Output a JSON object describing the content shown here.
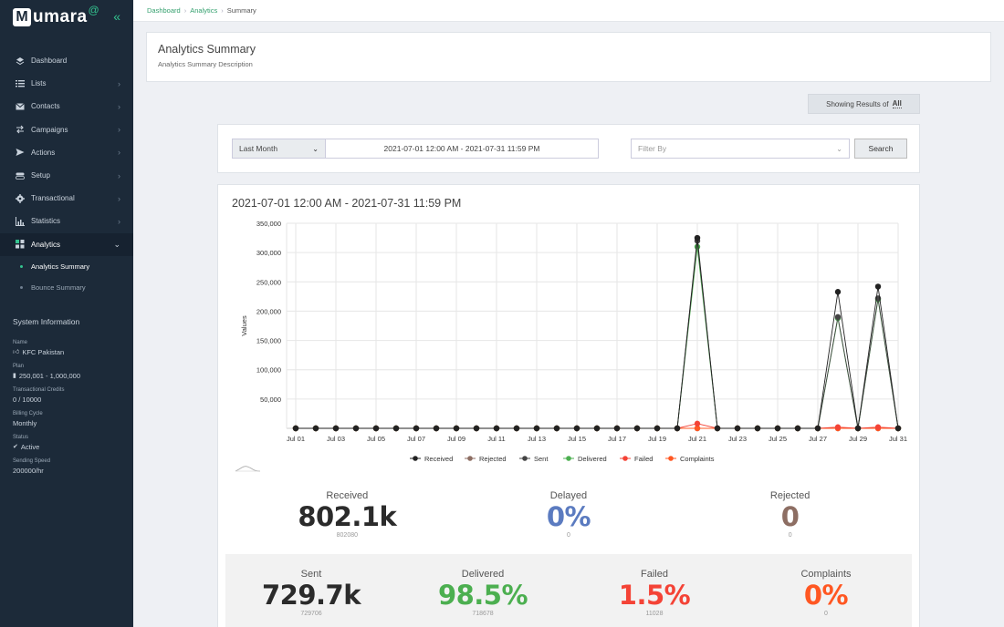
{
  "brand": {
    "letter": "M",
    "name": "umara",
    "suffix": "@"
  },
  "nav": [
    {
      "label": "Dashboard",
      "icon": "layers-icon",
      "has_arrow": false
    },
    {
      "label": "Lists",
      "icon": "list-icon",
      "has_arrow": true
    },
    {
      "label": "Contacts",
      "icon": "envelope-icon",
      "has_arrow": true
    },
    {
      "label": "Campaigns",
      "icon": "swap-icon",
      "has_arrow": true
    },
    {
      "label": "Actions",
      "icon": "send-icon",
      "has_arrow": true
    },
    {
      "label": "Setup",
      "icon": "toggle-icon",
      "has_arrow": true
    },
    {
      "label": "Transactional",
      "icon": "gear-icon",
      "has_arrow": true
    },
    {
      "label": "Statistics",
      "icon": "bar-chart-icon",
      "has_arrow": true
    },
    {
      "label": "Analytics",
      "icon": "grid-icon",
      "has_arrow": true
    }
  ],
  "subnav": [
    {
      "label": "Analytics Summary"
    },
    {
      "label": "Bounce Summary"
    }
  ],
  "system": {
    "title": "System Information",
    "name_label": "Name",
    "name_value": "KFC Pakistan",
    "plan_label": "Plan",
    "plan_value": "250,001 - 1,000,000",
    "credits_label": "Transactional Credits",
    "credits_value": "0 / 10000",
    "billing_label": "Billing Cycle",
    "billing_value": "Monthly",
    "status_label": "Status",
    "status_value": "Active",
    "speed_label": "Sending Speed",
    "speed_value": "200000/hr"
  },
  "breadcrumb": {
    "dashboard": "Dashboard",
    "analytics": "Analytics",
    "current": "Summary"
  },
  "header": {
    "title": "Analytics Summary",
    "description": "Analytics Summary Description"
  },
  "results": {
    "prefix": "Showing Results of",
    "value": "All"
  },
  "filter": {
    "range": "Last Month",
    "date_range": "2021-07-01 12:00 AM - 2021-07-31 11:59 PM",
    "filter_placeholder": "Filter By",
    "search_label": "Search"
  },
  "chart_title": "2021-07-01 12:00 AM - 2021-07-31 11:59 PM",
  "chart_data": {
    "type": "line",
    "ylabel": "Values",
    "ylim": [
      0,
      350000
    ],
    "yticks": [
      50000,
      100000,
      150000,
      200000,
      250000,
      300000,
      350000
    ],
    "ytick_labels": [
      "50,000",
      "100,000",
      "150,000",
      "200,000",
      "250,000",
      "300,000",
      "350,000"
    ],
    "x": [
      "Jul 01",
      "Jul 02",
      "Jul 03",
      "Jul 04",
      "Jul 05",
      "Jul 06",
      "Jul 07",
      "Jul 08",
      "Jul 09",
      "Jul 10",
      "Jul 11",
      "Jul 12",
      "Jul 13",
      "Jul 14",
      "Jul 15",
      "Jul 16",
      "Jul 17",
      "Jul 18",
      "Jul 19",
      "Jul 20",
      "Jul 21",
      "Jul 22",
      "Jul 23",
      "Jul 24",
      "Jul 25",
      "Jul 26",
      "Jul 27",
      "Jul 28",
      "Jul 29",
      "Jul 30",
      "Jul 31"
    ],
    "xtick_labels": [
      "Jul 01",
      "Jul 03",
      "Jul 05",
      "Jul 07",
      "Jul 09",
      "Jul 11",
      "Jul 13",
      "Jul 15",
      "Jul 17",
      "Jul 19",
      "Jul 21",
      "Jul 23",
      "Jul 25",
      "Jul 27",
      "Jul 29",
      "Jul 31"
    ],
    "grid": true,
    "legend_position": "bottom",
    "series": [
      {
        "name": "Received",
        "color": "#222222",
        "values": [
          0,
          0,
          0,
          0,
          0,
          0,
          0,
          0,
          0,
          0,
          0,
          0,
          0,
          0,
          0,
          0,
          0,
          0,
          0,
          0,
          325000,
          0,
          0,
          0,
          0,
          0,
          0,
          233000,
          0,
          242000,
          0
        ]
      },
      {
        "name": "Rejected",
        "color": "#8d6e63",
        "values": [
          0,
          0,
          0,
          0,
          0,
          0,
          0,
          0,
          0,
          0,
          0,
          0,
          0,
          0,
          0,
          0,
          0,
          0,
          0,
          0,
          0,
          0,
          0,
          0,
          0,
          0,
          0,
          0,
          0,
          0,
          0
        ]
      },
      {
        "name": "Sent",
        "color": "#444444",
        "values": [
          0,
          0,
          0,
          0,
          0,
          0,
          0,
          0,
          0,
          0,
          0,
          0,
          0,
          0,
          0,
          0,
          0,
          0,
          0,
          0,
          320000,
          0,
          0,
          0,
          0,
          0,
          0,
          190000,
          0,
          222000,
          0
        ]
      },
      {
        "name": "Delivered",
        "color": "#4caf50",
        "values": [
          0,
          0,
          0,
          0,
          0,
          0,
          0,
          0,
          0,
          0,
          0,
          0,
          0,
          0,
          0,
          0,
          0,
          0,
          0,
          0,
          310000,
          0,
          0,
          0,
          0,
          0,
          0,
          188000,
          0,
          220000,
          0
        ]
      },
      {
        "name": "Failed",
        "color": "#f44336",
        "values": [
          0,
          0,
          0,
          0,
          0,
          0,
          0,
          0,
          0,
          0,
          0,
          0,
          0,
          0,
          0,
          0,
          0,
          0,
          0,
          0,
          8000,
          0,
          0,
          0,
          0,
          0,
          0,
          2000,
          0,
          2000,
          0
        ]
      },
      {
        "name": "Complaints",
        "color": "#ff5722",
        "values": [
          0,
          0,
          0,
          0,
          0,
          0,
          0,
          0,
          0,
          0,
          0,
          0,
          0,
          0,
          0,
          0,
          0,
          0,
          0,
          0,
          0,
          0,
          0,
          0,
          0,
          0,
          0,
          0,
          0,
          0,
          0
        ]
      }
    ]
  },
  "stats": {
    "received": {
      "label": "Received",
      "value": "802.1k",
      "sub": "802080",
      "color": "#2b2b2b"
    },
    "delayed": {
      "label": "Delayed",
      "value": "0%",
      "sub": "0",
      "color": "#5b7bc0"
    },
    "rejected": {
      "label": "Rejected",
      "value": "0",
      "sub": "0",
      "color": "#8d6e63"
    },
    "sent": {
      "label": "Sent",
      "value": "729.7k",
      "sub": "729706",
      "color": "#2b2b2b"
    },
    "delivered": {
      "label": "Delivered",
      "value": "98.5%",
      "sub": "718678",
      "color": "#4caf50"
    },
    "failed": {
      "label": "Failed",
      "value": "1.5%",
      "sub": "11028",
      "color": "#f44336"
    },
    "complaints": {
      "label": "Complaints",
      "value": "0%",
      "sub": "0",
      "color": "#ff5722"
    }
  }
}
